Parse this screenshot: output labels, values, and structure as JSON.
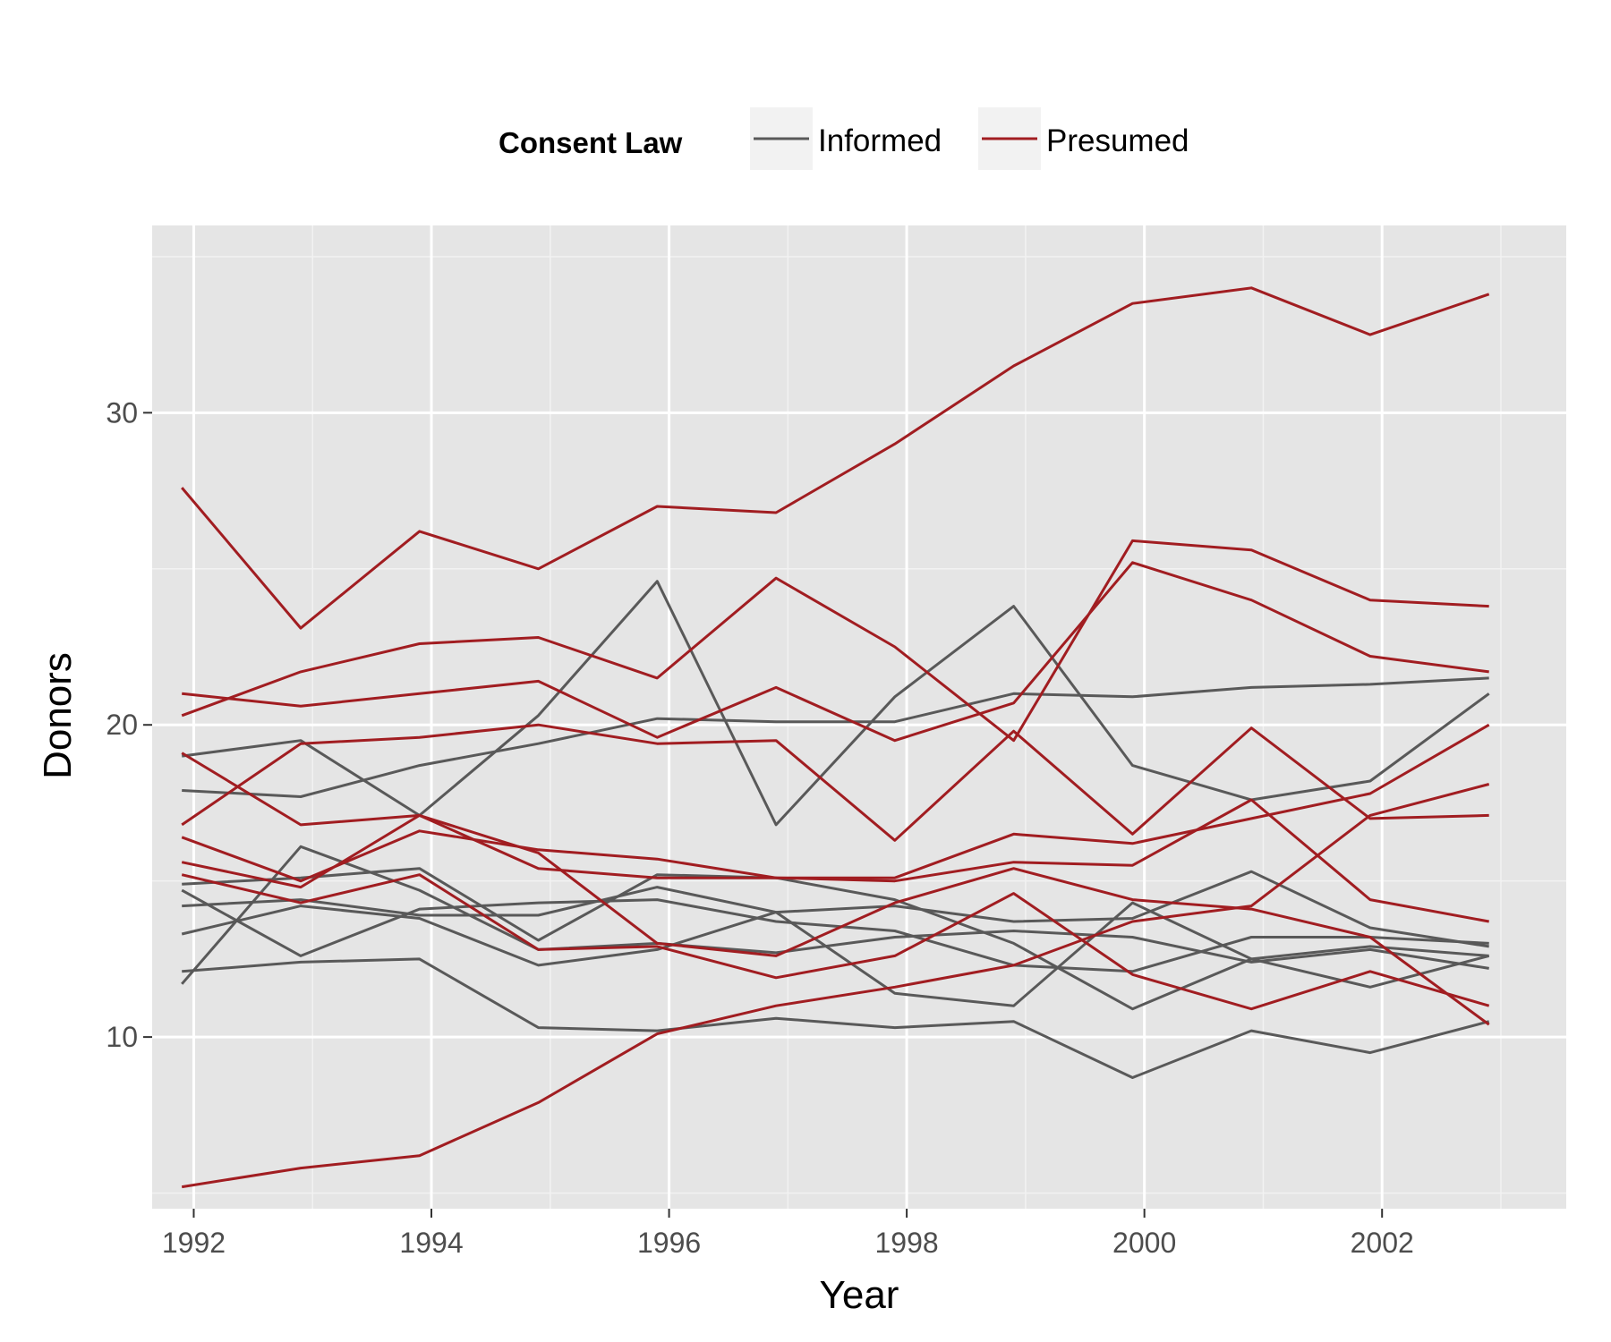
{
  "chart_data": {
    "type": "line",
    "xlabel": "Year",
    "ylabel": "Donors",
    "xlim": [
      1991.65,
      2003.55
    ],
    "ylim": [
      4.5,
      36.0
    ],
    "x_ticks": [
      1992,
      1994,
      1996,
      1998,
      2000,
      2002
    ],
    "y_ticks": [
      10,
      20,
      30
    ],
    "grid": true,
    "legend": {
      "title": "Consent Law",
      "placement": "top",
      "entries": [
        {
          "label": "Informed",
          "color": "#595959"
        },
        {
          "label": "Presumed",
          "color": "#a11d21"
        }
      ]
    },
    "colors": {
      "Informed": "#595959",
      "Presumed": "#a11d21",
      "panel": "#e5e5e5"
    },
    "x": [
      1991.9,
      1992.9,
      1993.9,
      1994.9,
      1995.9,
      1996.9,
      1997.9,
      1998.9,
      1999.9,
      2000.9,
      2001.9,
      2002.9
    ],
    "series": [
      {
        "group": "Presumed",
        "values": [
          27.6,
          23.1,
          26.2,
          25.0,
          27.0,
          26.8,
          29.0,
          31.5,
          33.5,
          34.0,
          32.5,
          33.8
        ]
      },
      {
        "group": "Presumed",
        "values": [
          20.3,
          21.7,
          22.6,
          22.8,
          21.5,
          24.7,
          22.5,
          19.5,
          25.9,
          25.6,
          24.0,
          23.8
        ]
      },
      {
        "group": "Presumed",
        "values": [
          21.0,
          20.6,
          21.0,
          21.4,
          19.6,
          21.2,
          19.5,
          20.7,
          25.2,
          24.0,
          22.2,
          21.7
        ]
      },
      {
        "group": "Presumed",
        "values": [
          19.1,
          16.8,
          17.1,
          15.9,
          13.0,
          12.6,
          14.3,
          15.4,
          14.4,
          14.1,
          13.2,
          10.4
        ]
      },
      {
        "group": "Presumed",
        "values": [
          16.8,
          19.4,
          19.6,
          20.0,
          19.4,
          19.5,
          16.3,
          19.8,
          16.5,
          19.9,
          17.0,
          17.1
        ]
      },
      {
        "group": "Presumed",
        "values": [
          16.4,
          15.0,
          16.6,
          16.0,
          15.7,
          15.1,
          15.1,
          16.5,
          16.2,
          17.0,
          17.8,
          20.0
        ]
      },
      {
        "group": "Presumed",
        "values": [
          15.6,
          14.8,
          17.1,
          15.4,
          15.1,
          15.1,
          15.0,
          15.6,
          15.5,
          17.6,
          14.4,
          13.7
        ]
      },
      {
        "group": "Presumed",
        "values": [
          15.2,
          14.3,
          15.2,
          12.8,
          12.9,
          11.9,
          12.6,
          14.6,
          12.0,
          10.9,
          12.1,
          11.0
        ]
      },
      {
        "group": "Presumed",
        "values": [
          5.2,
          5.8,
          6.2,
          7.9,
          10.1,
          11.0,
          11.6,
          12.3,
          13.7,
          14.2,
          17.1,
          18.1
        ]
      },
      {
        "group": "Informed",
        "values": [
          19.0,
          19.5,
          17.1,
          20.3,
          24.6,
          16.8,
          20.9,
          23.8,
          18.7,
          17.6,
          18.2,
          21.0
        ]
      },
      {
        "group": "Informed",
        "values": [
          17.9,
          17.7,
          18.7,
          19.4,
          20.2,
          20.1,
          20.1,
          21.0,
          20.9,
          21.2,
          21.3,
          21.5
        ]
      },
      {
        "group": "Informed",
        "values": [
          14.9,
          15.1,
          15.4,
          13.1,
          15.2,
          15.1,
          14.4,
          13.0,
          10.9,
          12.5,
          12.9,
          12.6
        ]
      },
      {
        "group": "Informed",
        "values": [
          14.7,
          12.6,
          14.1,
          14.3,
          14.4,
          13.7,
          13.4,
          12.3,
          12.1,
          13.2,
          13.2,
          13.0
        ]
      },
      {
        "group": "Informed",
        "values": [
          14.2,
          14.4,
          13.9,
          13.9,
          14.8,
          14.0,
          11.4,
          11.0,
          14.3,
          12.5,
          11.6,
          12.6
        ]
      },
      {
        "group": "Informed",
        "values": [
          13.3,
          14.2,
          13.8,
          12.3,
          12.8,
          14.0,
          14.2,
          13.7,
          13.8,
          15.3,
          13.5,
          12.9
        ]
      },
      {
        "group": "Informed",
        "values": [
          11.7,
          16.1,
          14.7,
          12.8,
          13.0,
          12.7,
          13.2,
          13.4,
          13.2,
          12.4,
          12.8,
          12.2
        ]
      },
      {
        "group": "Informed",
        "values": [
          12.1,
          12.4,
          12.5,
          10.3,
          10.2,
          10.6,
          10.3,
          10.5,
          8.7,
          10.2,
          9.5,
          10.5
        ]
      }
    ]
  }
}
